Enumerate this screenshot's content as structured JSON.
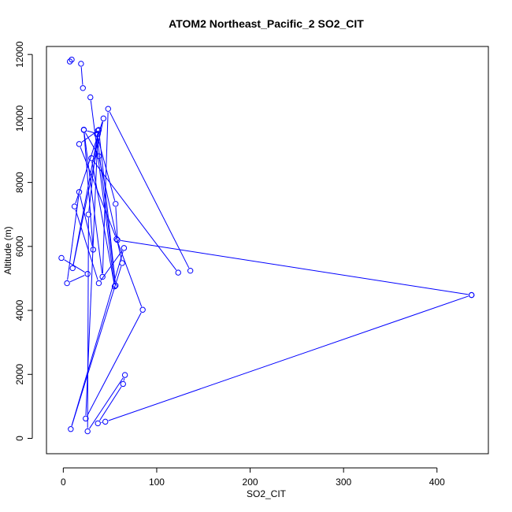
{
  "chart_data": {
    "type": "line",
    "title": "ATOM2 Northeast_Pacific_2 SO2_CIT",
    "xlabel": "SO2_CIT",
    "ylabel": "Altitude (m)",
    "xlim": [
      -18,
      455
    ],
    "ylim": [
      -480,
      12250
    ],
    "x_ticks": [
      0,
      100,
      200,
      300,
      400
    ],
    "y_ticks": [
      0,
      2000,
      4000,
      6000,
      8000,
      10000,
      12000
    ],
    "colors": {
      "series": "#0000ff"
    },
    "series": [
      {
        "points": [
          [
            437,
            4480
          ],
          [
            45,
            520
          ],
          [
            37,
            470
          ],
          [
            64,
            1700
          ],
          [
            66,
            1980
          ],
          [
            26,
            220
          ],
          [
            27,
            7000
          ],
          [
            37,
            9620
          ],
          [
            17,
            9200
          ],
          [
            57,
            6230
          ],
          [
            85,
            4020
          ],
          [
            24,
            620
          ],
          [
            37,
            9520
          ],
          [
            22,
            9640
          ],
          [
            38,
            8820
          ],
          [
            63,
            5480
          ],
          [
            8,
            290
          ],
          [
            65,
            5950
          ],
          [
            38,
            4850
          ],
          [
            12,
            7250
          ],
          [
            43,
            10000
          ],
          [
            10,
            5320
          ],
          [
            38,
            9640
          ],
          [
            56,
            4780
          ],
          [
            36,
            9500
          ],
          [
            56,
            7330
          ],
          [
            58,
            6200
          ],
          [
            437,
            4480
          ]
        ]
      },
      {
        "points": [
          [
            29,
            10660
          ],
          [
            55,
            4750
          ],
          [
            30,
            8760
          ],
          [
            123,
            5180
          ]
        ]
      },
      {
        "points": [
          [
            136,
            5240
          ],
          [
            48,
            10300
          ],
          [
            42,
            5050
          ],
          [
            22,
            9650
          ],
          [
            32,
            5900
          ],
          [
            17,
            7700
          ],
          [
            4,
            4850
          ],
          [
            26,
            5140
          ],
          [
            -2,
            5640
          ]
        ]
      },
      {
        "points": [
          [
            7,
            11780
          ],
          [
            9,
            11840
          ]
        ]
      },
      {
        "points": [
          [
            19,
            11710
          ],
          [
            21,
            10950
          ]
        ]
      }
    ]
  }
}
